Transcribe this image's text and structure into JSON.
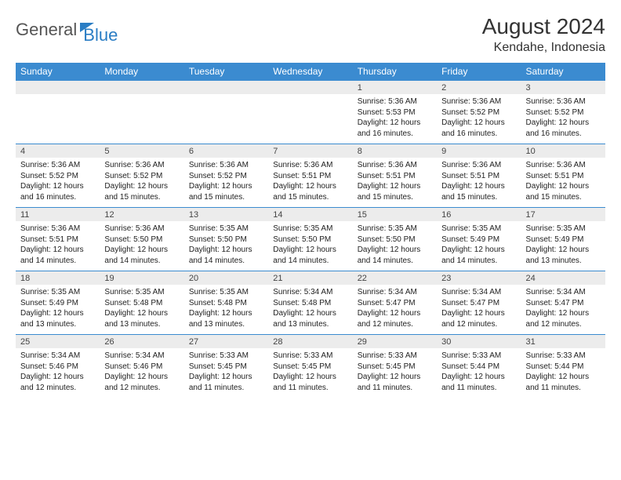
{
  "brand": {
    "part1": "General",
    "part2": "Blue"
  },
  "title": "August 2024",
  "location": "Kendahe, Indonesia",
  "colors": {
    "header_bg": "#3b8bd0",
    "header_text": "#ffffff",
    "daynum_bg": "#ececec",
    "border": "#3b8bd0",
    "brand_blue": "#2a7dc4"
  },
  "day_headers": [
    "Sunday",
    "Monday",
    "Tuesday",
    "Wednesday",
    "Thursday",
    "Friday",
    "Saturday"
  ],
  "weeks": [
    [
      null,
      null,
      null,
      null,
      {
        "n": "1",
        "sr": "Sunrise: 5:36 AM",
        "ss": "Sunset: 5:53 PM",
        "dl": "Daylight: 12 hours and 16 minutes."
      },
      {
        "n": "2",
        "sr": "Sunrise: 5:36 AM",
        "ss": "Sunset: 5:52 PM",
        "dl": "Daylight: 12 hours and 16 minutes."
      },
      {
        "n": "3",
        "sr": "Sunrise: 5:36 AM",
        "ss": "Sunset: 5:52 PM",
        "dl": "Daylight: 12 hours and 16 minutes."
      }
    ],
    [
      {
        "n": "4",
        "sr": "Sunrise: 5:36 AM",
        "ss": "Sunset: 5:52 PM",
        "dl": "Daylight: 12 hours and 16 minutes."
      },
      {
        "n": "5",
        "sr": "Sunrise: 5:36 AM",
        "ss": "Sunset: 5:52 PM",
        "dl": "Daylight: 12 hours and 15 minutes."
      },
      {
        "n": "6",
        "sr": "Sunrise: 5:36 AM",
        "ss": "Sunset: 5:52 PM",
        "dl": "Daylight: 12 hours and 15 minutes."
      },
      {
        "n": "7",
        "sr": "Sunrise: 5:36 AM",
        "ss": "Sunset: 5:51 PM",
        "dl": "Daylight: 12 hours and 15 minutes."
      },
      {
        "n": "8",
        "sr": "Sunrise: 5:36 AM",
        "ss": "Sunset: 5:51 PM",
        "dl": "Daylight: 12 hours and 15 minutes."
      },
      {
        "n": "9",
        "sr": "Sunrise: 5:36 AM",
        "ss": "Sunset: 5:51 PM",
        "dl": "Daylight: 12 hours and 15 minutes."
      },
      {
        "n": "10",
        "sr": "Sunrise: 5:36 AM",
        "ss": "Sunset: 5:51 PM",
        "dl": "Daylight: 12 hours and 15 minutes."
      }
    ],
    [
      {
        "n": "11",
        "sr": "Sunrise: 5:36 AM",
        "ss": "Sunset: 5:51 PM",
        "dl": "Daylight: 12 hours and 14 minutes."
      },
      {
        "n": "12",
        "sr": "Sunrise: 5:36 AM",
        "ss": "Sunset: 5:50 PM",
        "dl": "Daylight: 12 hours and 14 minutes."
      },
      {
        "n": "13",
        "sr": "Sunrise: 5:35 AM",
        "ss": "Sunset: 5:50 PM",
        "dl": "Daylight: 12 hours and 14 minutes."
      },
      {
        "n": "14",
        "sr": "Sunrise: 5:35 AM",
        "ss": "Sunset: 5:50 PM",
        "dl": "Daylight: 12 hours and 14 minutes."
      },
      {
        "n": "15",
        "sr": "Sunrise: 5:35 AM",
        "ss": "Sunset: 5:50 PM",
        "dl": "Daylight: 12 hours and 14 minutes."
      },
      {
        "n": "16",
        "sr": "Sunrise: 5:35 AM",
        "ss": "Sunset: 5:49 PM",
        "dl": "Daylight: 12 hours and 14 minutes."
      },
      {
        "n": "17",
        "sr": "Sunrise: 5:35 AM",
        "ss": "Sunset: 5:49 PM",
        "dl": "Daylight: 12 hours and 13 minutes."
      }
    ],
    [
      {
        "n": "18",
        "sr": "Sunrise: 5:35 AM",
        "ss": "Sunset: 5:49 PM",
        "dl": "Daylight: 12 hours and 13 minutes."
      },
      {
        "n": "19",
        "sr": "Sunrise: 5:35 AM",
        "ss": "Sunset: 5:48 PM",
        "dl": "Daylight: 12 hours and 13 minutes."
      },
      {
        "n": "20",
        "sr": "Sunrise: 5:35 AM",
        "ss": "Sunset: 5:48 PM",
        "dl": "Daylight: 12 hours and 13 minutes."
      },
      {
        "n": "21",
        "sr": "Sunrise: 5:34 AM",
        "ss": "Sunset: 5:48 PM",
        "dl": "Daylight: 12 hours and 13 minutes."
      },
      {
        "n": "22",
        "sr": "Sunrise: 5:34 AM",
        "ss": "Sunset: 5:47 PM",
        "dl": "Daylight: 12 hours and 12 minutes."
      },
      {
        "n": "23",
        "sr": "Sunrise: 5:34 AM",
        "ss": "Sunset: 5:47 PM",
        "dl": "Daylight: 12 hours and 12 minutes."
      },
      {
        "n": "24",
        "sr": "Sunrise: 5:34 AM",
        "ss": "Sunset: 5:47 PM",
        "dl": "Daylight: 12 hours and 12 minutes."
      }
    ],
    [
      {
        "n": "25",
        "sr": "Sunrise: 5:34 AM",
        "ss": "Sunset: 5:46 PM",
        "dl": "Daylight: 12 hours and 12 minutes."
      },
      {
        "n": "26",
        "sr": "Sunrise: 5:34 AM",
        "ss": "Sunset: 5:46 PM",
        "dl": "Daylight: 12 hours and 12 minutes."
      },
      {
        "n": "27",
        "sr": "Sunrise: 5:33 AM",
        "ss": "Sunset: 5:45 PM",
        "dl": "Daylight: 12 hours and 11 minutes."
      },
      {
        "n": "28",
        "sr": "Sunrise: 5:33 AM",
        "ss": "Sunset: 5:45 PM",
        "dl": "Daylight: 12 hours and 11 minutes."
      },
      {
        "n": "29",
        "sr": "Sunrise: 5:33 AM",
        "ss": "Sunset: 5:45 PM",
        "dl": "Daylight: 12 hours and 11 minutes."
      },
      {
        "n": "30",
        "sr": "Sunrise: 5:33 AM",
        "ss": "Sunset: 5:44 PM",
        "dl": "Daylight: 12 hours and 11 minutes."
      },
      {
        "n": "31",
        "sr": "Sunrise: 5:33 AM",
        "ss": "Sunset: 5:44 PM",
        "dl": "Daylight: 12 hours and 11 minutes."
      }
    ]
  ]
}
